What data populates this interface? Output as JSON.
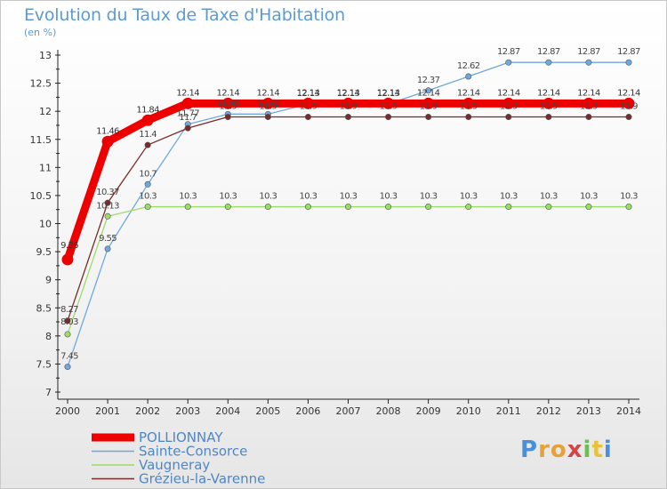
{
  "title": "Evolution du Taux de Taxe d'Habitation",
  "unit": "(en %)",
  "logo": [
    "P",
    "r",
    "o",
    "x",
    "i",
    "t",
    "i"
  ],
  "chart_data": {
    "type": "line",
    "x": [
      "2000",
      "2001",
      "2002",
      "2003",
      "2004",
      "2005",
      "2006",
      "2007",
      "2008",
      "2009",
      "2010",
      "2011",
      "2012",
      "2013",
      "2014"
    ],
    "ylim": [
      7,
      13
    ],
    "yticks": [
      "7",
      "7.5",
      "8",
      "8.5",
      "9",
      "9.5",
      "10",
      "10.5",
      "11",
      "11.5",
      "12",
      "12.5",
      "13"
    ],
    "grid": false,
    "legend_position": "bottom-left",
    "series": [
      {
        "name": "POLLIONNAY",
        "color": "#ee0000",
        "values": [
          9.36,
          11.46,
          11.84,
          12.14,
          12.14,
          12.14,
          12.14,
          12.14,
          12.14,
          12.14,
          12.14,
          12.14,
          12.14,
          12.14,
          12.14
        ],
        "labels": [
          "9.36",
          "11.46",
          "11.84",
          "12.14",
          "12.14",
          "12.14",
          "12.14",
          "12.14",
          "12.14",
          "12.14",
          "12.14",
          "12.14",
          "12.14",
          "12.14",
          "12.14"
        ]
      },
      {
        "name": "Sainte-Consorce",
        "color": "#6fa8dc",
        "values": [
          7.45,
          9.55,
          10.7,
          11.77,
          11.95,
          11.95,
          12.13,
          12.13,
          12.13,
          12.37,
          12.62,
          12.87,
          12.87,
          12.87,
          12.87
        ],
        "labels": [
          "7.45",
          "9.55",
          "10.7",
          "11.77",
          "11.95",
          "11.95",
          "12.13",
          "12.13",
          "12.13",
          "12.37",
          "12.62",
          "12.87",
          "12.87",
          "12.87",
          "12.87"
        ]
      },
      {
        "name": "Vaugneray",
        "color": "#99dd66",
        "values": [
          8.03,
          10.13,
          10.3,
          10.3,
          10.3,
          10.3,
          10.3,
          10.3,
          10.3,
          10.3,
          10.3,
          10.3,
          10.3,
          10.3,
          10.3
        ],
        "labels": [
          "8.03",
          "10.13",
          "10.3",
          "10.3",
          "10.3",
          "10.3",
          "10.3",
          "10.3",
          "10.3",
          "10.3",
          "10.3",
          "10.3",
          "10.3",
          "10.3",
          "10.3"
        ]
      },
      {
        "name": "Grézieu-la-Varenne",
        "color": "#7a2a2a",
        "values": [
          8.27,
          10.37,
          11.4,
          11.7,
          11.9,
          11.9,
          11.9,
          11.9,
          11.9,
          11.9,
          11.9,
          11.9,
          11.9,
          11.9,
          11.9
        ],
        "labels": [
          "8.27",
          "10.37",
          "11.4",
          "11.7",
          "11.9",
          "11.9",
          "11.9",
          "11.9",
          "11.9",
          "11.9",
          "11.9",
          "11.9",
          "11.9",
          "11.9",
          "11.9"
        ]
      }
    ]
  }
}
